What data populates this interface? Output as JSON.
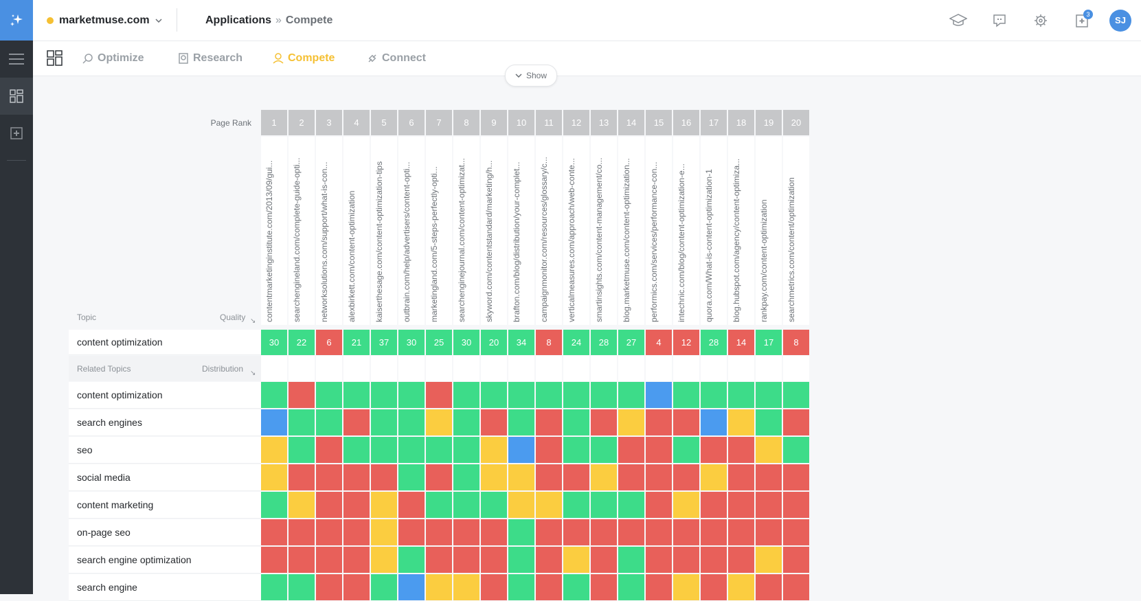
{
  "header": {
    "site": "marketmuse.com",
    "breadcrumb": {
      "root": "Applications",
      "separator": "»",
      "current": "Compete"
    },
    "notifications_count": "3",
    "avatar_initials": "SJ"
  },
  "tabs": [
    {
      "label": "Optimize",
      "icon": "optimize-icon",
      "active": false
    },
    {
      "label": "Research",
      "icon": "research-icon",
      "active": false
    },
    {
      "label": "Compete",
      "icon": "compete-icon",
      "active": true
    },
    {
      "label": "Connect",
      "icon": "connect-icon",
      "active": false
    }
  ],
  "show_button": "Show",
  "table": {
    "page_rank_label": "Page Rank",
    "topic_label": "Topic",
    "quality_label": "Quality",
    "related_topics_label": "Related Topics",
    "distribution_label": "Distribution",
    "focus_topic": "content optimization",
    "ranks": [
      "1",
      "2",
      "3",
      "4",
      "5",
      "6",
      "7",
      "8",
      "9",
      "10",
      "11",
      "12",
      "13",
      "14",
      "15",
      "16",
      "17",
      "18",
      "19",
      "20"
    ],
    "urls": [
      "contentmarketinginstitute.com/2013/09/gui...",
      "searchengineland.com/complete-guide-opti...",
      "networksolutions.com/support/what-is-con...",
      "alexbirkett.com/content-optimization",
      "kaiserthesage.com/content-optimization-tips",
      "outbrain.com/help/advertisers/content-opti...",
      "marketingland.com/5-steps-perfectly-opti...",
      "searchenginejournal.com/content-optimizat...",
      "skyword.com/contentstandard/marketing/h...",
      "brafton.com/blog/distribution/your-complet...",
      "campaignmonitor.com/resources/glossary/c...",
      "verticalmeasures.com/approach/web-conte...",
      "smartinsights.com/content-management/co...",
      "blog.marketmuse.com/content-optimization...",
      "performics.com/services/performance-con...",
      "intechnic.com/blog/content-optimization-e...",
      "quora.com/What-is-content-optimization-1",
      "blog.hubspot.com/agency/content-optimiza...",
      "rankpay.com/content-optimization",
      "searchmetrics.com/content/optimization"
    ],
    "quality_scores": [
      "30",
      "22",
      "6",
      "21",
      "37",
      "30",
      "25",
      "30",
      "20",
      "34",
      "8",
      "24",
      "28",
      "27",
      "4",
      "12",
      "28",
      "14",
      "17",
      "8"
    ],
    "quality_colors": [
      "g",
      "g",
      "r",
      "g",
      "g",
      "g",
      "g",
      "g",
      "g",
      "g",
      "r",
      "g",
      "g",
      "g",
      "r",
      "r",
      "g",
      "r",
      "g",
      "r"
    ],
    "color_map": {
      "g": "#3ddc89",
      "r": "#e8605a",
      "y": "#fbcd40",
      "b": "#4b9bef"
    },
    "related_topics": [
      {
        "label": "content optimization",
        "cells": "grggggrgggggggbggggg"
      },
      {
        "label": "search engines",
        "cells": "bggrggygrgrgryrrbygr"
      },
      {
        "label": "seo",
        "cells": "ygrgggggybrggrrgrryg"
      },
      {
        "label": "social media",
        "cells": "yrrrrgrgyyrryrrryrrr"
      },
      {
        "label": "content marketing",
        "cells": "gyrryrgggyygggryrrrr"
      },
      {
        "label": "on-page seo",
        "cells": "rrrryrrrrgrrrrrrrrrr"
      },
      {
        "label": "search engine optimization",
        "cells": "rrrrygrrrgryrgrrrryr"
      },
      {
        "label": "search engine",
        "cells": "ggrrgbyyrgrgrgryryrr"
      }
    ]
  }
}
